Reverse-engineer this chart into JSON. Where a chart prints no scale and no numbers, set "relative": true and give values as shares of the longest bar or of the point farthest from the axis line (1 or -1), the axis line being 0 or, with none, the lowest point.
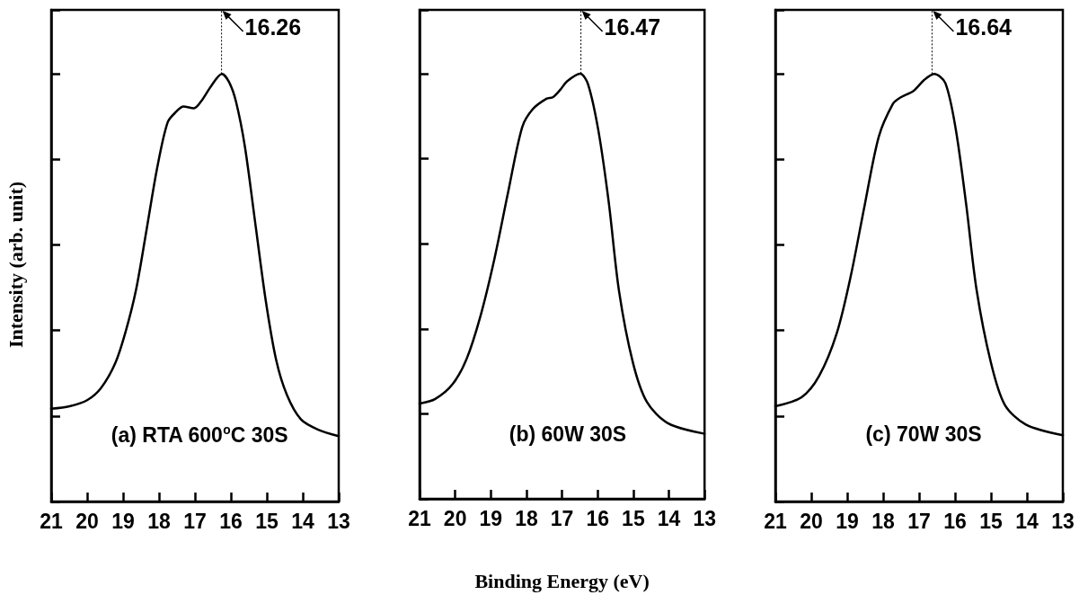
{
  "chart_data": [
    {
      "type": "line",
      "title": "(a) RTA 600$^{o}$C 30S",
      "ylabel": "Intensity (arb. unit)",
      "relative": true,
      "xlim": [
        21,
        13
      ],
      "xticks": [
        21,
        20,
        19,
        18,
        17,
        16,
        15,
        14,
        13
      ],
      "grid": false,
      "marker": "none",
      "line_style": "solid",
      "annotations": [
        {
          "text": "16.26",
          "x": 16.26,
          "y": 1
        }
      ],
      "series": [
        {
          "color": "#000000",
          "x": [
            21,
            20.49,
            20.0,
            19.61,
            19.22,
            18.93,
            18.64,
            18.35,
            18.05,
            17.76,
            17.52,
            17.32,
            17.03,
            16.83,
            16.54,
            16.25,
            16.05,
            15.86,
            15.61,
            15.32,
            15.03,
            14.74,
            14.44,
            14.05,
            13.57,
            13.0
          ],
          "values": [
            0.217,
            0.223,
            0.237,
            0.266,
            0.323,
            0.397,
            0.495,
            0.634,
            0.781,
            0.887,
            0.912,
            0.924,
            0.92,
            0.936,
            0.973,
            1.0,
            0.981,
            0.936,
            0.83,
            0.65,
            0.47,
            0.331,
            0.249,
            0.192,
            0.168,
            0.153
          ]
        }
      ]
    },
    {
      "type": "line",
      "title": "(b) 60W 30S",
      "xlabel": "Binding Energy (eV)",
      "relative": true,
      "xlim": [
        21,
        13
      ],
      "xticks": [
        21,
        20,
        19,
        18,
        17,
        16,
        15,
        14,
        13
      ],
      "grid": false,
      "marker": "none",
      "line_style": "solid",
      "annotations": [
        {
          "text": "16.47",
          "x": 16.47,
          "y": 1
        }
      ],
      "series": [
        {
          "color": "#000000",
          "x": [
            21,
            20.56,
            20.07,
            19.68,
            19.29,
            18.9,
            18.51,
            18.12,
            17.83,
            17.44,
            17.25,
            17.05,
            16.86,
            16.49,
            16.27,
            15.98,
            15.69,
            15.4,
            15.01,
            14.62,
            14.03,
            13.0
          ],
          "values": [
            0.224,
            0.235,
            0.27,
            0.329,
            0.43,
            0.564,
            0.723,
            0.874,
            0.916,
            0.941,
            0.945,
            0.962,
            0.982,
            1.0,
            0.975,
            0.866,
            0.698,
            0.488,
            0.32,
            0.228,
            0.178,
            0.153
          ]
        }
      ]
    },
    {
      "type": "line",
      "title": "(c) 70W 30S",
      "relative": true,
      "xlim": [
        21,
        13
      ],
      "xticks": [
        21,
        20,
        19,
        18,
        17,
        16,
        15,
        14,
        13
      ],
      "grid": false,
      "marker": "none",
      "line_style": "solid",
      "annotations": [
        {
          "text": "16.64",
          "x": 16.64,
          "y": 1
        }
      ],
      "series": [
        {
          "color": "#000000",
          "x": [
            21,
            20.27,
            19.78,
            19.29,
            18.9,
            18.51,
            18.12,
            17.73,
            17.54,
            17.15,
            16.86,
            16.58,
            16.27,
            15.98,
            15.69,
            15.4,
            15.01,
            14.62,
            14.03,
            13.0
          ],
          "values": [
            0.223,
            0.244,
            0.294,
            0.394,
            0.528,
            0.695,
            0.854,
            0.93,
            0.944,
            0.961,
            0.986,
            1.0,
            0.979,
            0.871,
            0.695,
            0.495,
            0.328,
            0.227,
            0.18,
            0.155
          ]
        }
      ]
    }
  ]
}
